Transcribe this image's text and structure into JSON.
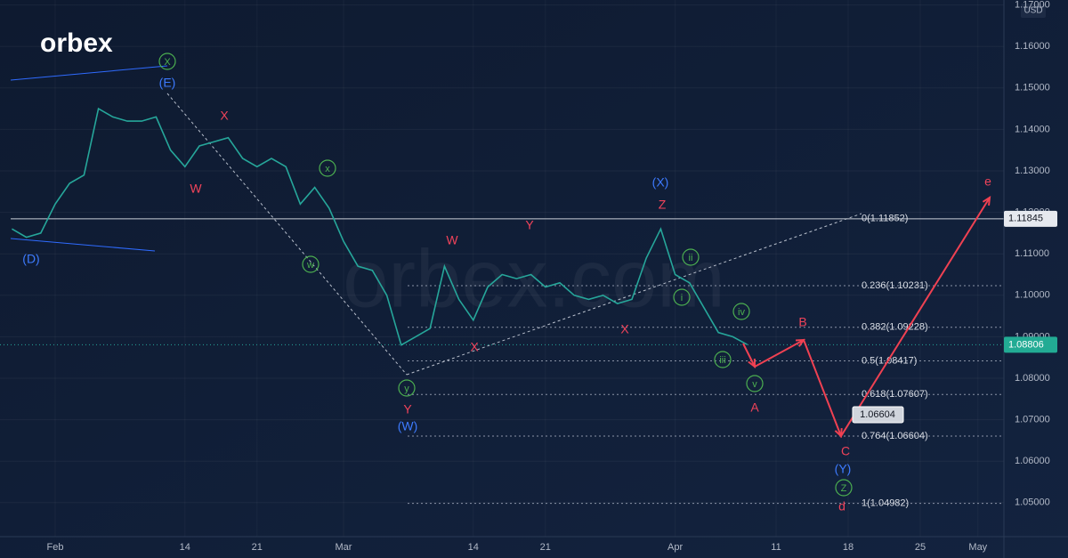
{
  "chart_data": {
    "type": "line",
    "logo": "orbex",
    "watermark": "orbex.com",
    "currency": "USD",
    "color": "#26a69a",
    "grid": true,
    "categories": [
      null,
      null,
      null,
      "Feb",
      null,
      null,
      null,
      null,
      null,
      null,
      null,
      null,
      "14",
      null,
      null,
      null,
      null,
      "21",
      null,
      null,
      null,
      null,
      null,
      "Mar",
      null,
      null,
      null,
      null,
      null,
      null,
      null,
      null,
      "14",
      null,
      null,
      null,
      null,
      "21",
      null,
      null,
      null,
      null,
      null,
      null,
      null,
      null,
      "Apr",
      null,
      null,
      null,
      null,
      null,
      null,
      "11",
      null,
      null,
      null,
      null,
      "18",
      null,
      null,
      null,
      null,
      "25",
      null,
      null,
      null,
      "May"
    ],
    "values": [
      1.116,
      1.114,
      1.115,
      1.122,
      1.127,
      1.129,
      1.145,
      1.143,
      1.142,
      1.142,
      1.143,
      1.135,
      1.131,
      1.136,
      1.137,
      1.138,
      1.133,
      1.131,
      1.133,
      1.131,
      1.122,
      1.126,
      1.121,
      1.113,
      1.107,
      1.106,
      1.1,
      1.088,
      1.09,
      1.092,
      1.107,
      1.099,
      1.094,
      1.102,
      1.105,
      1.104,
      1.105,
      1.102,
      1.103,
      1.1,
      1.099,
      1.1,
      1.098,
      1.099,
      1.109,
      1.116,
      1.105,
      1.103,
      1.097,
      1.091,
      1.09,
      1.0881,
      null,
      null,
      null,
      null,
      null,
      null,
      null,
      null,
      null,
      null,
      null,
      null,
      null,
      null,
      null,
      null
    ],
    "ylim": [
      1.0418,
      1.1712
    ],
    "yticks": [
      {
        "value": 1.05,
        "label": "1.05000"
      },
      {
        "value": 1.06,
        "label": "1.06000"
      },
      {
        "value": 1.07,
        "label": "1.07000"
      },
      {
        "value": 1.08,
        "label": "1.08000"
      },
      {
        "value": 1.09,
        "label": "1.09000"
      },
      {
        "value": 1.1,
        "label": "1.10000"
      },
      {
        "value": 1.11,
        "label": "1.11000"
      },
      {
        "value": 1.12,
        "label": "1.12000"
      },
      {
        "value": 1.13,
        "label": "1.13000"
      },
      {
        "value": 1.14,
        "label": "1.14000"
      },
      {
        "value": 1.15,
        "label": "1.15000"
      },
      {
        "value": 1.16,
        "label": "1.16000"
      },
      {
        "value": 1.17,
        "label": "1.17000"
      }
    ],
    "fib_levels": [
      {
        "value": 1.11852,
        "label": "0(1.11852)"
      },
      {
        "value": 1.10231,
        "label": "0.236(1.10231)"
      },
      {
        "value": 1.09228,
        "label": "0.382(1.09228)"
      },
      {
        "value": 1.08417,
        "label": "0.5(1.08417)"
      },
      {
        "value": 1.07607,
        "label": "0.618(1.07607)"
      },
      {
        "value": 1.06604,
        "label": "0.764(1.06604)"
      },
      {
        "value": 1.04982,
        "label": "1(1.04982)"
      }
    ],
    "reference_price": {
      "value": 1.11845,
      "label": "1.11845"
    },
    "last_price": {
      "value": 1.08806,
      "label": "1.08806"
    },
    "target": {
      "value": 1.06604,
      "label": "1.06604"
    },
    "annotations": [
      "X",
      "(E)",
      "X",
      "W",
      "(D)",
      "x",
      "w",
      "y",
      "Y",
      "(W)",
      "W",
      "X",
      "Y",
      "X",
      "(X)",
      "Z",
      "ii",
      "i",
      "iv",
      "iii",
      "v",
      "A",
      "B",
      "C",
      "(Y)",
      "Z",
      "d",
      "e"
    ]
  }
}
